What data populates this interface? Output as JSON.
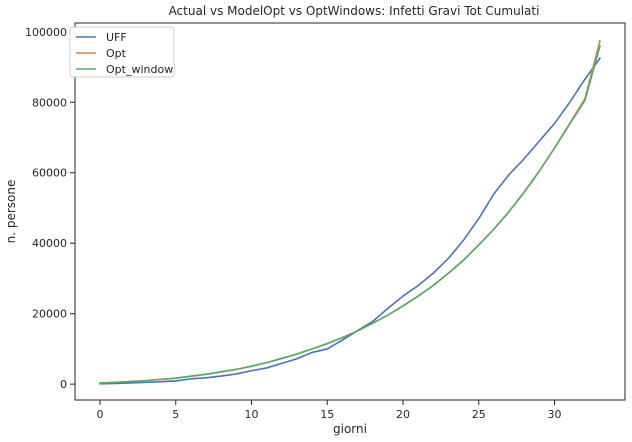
{
  "chart_data": {
    "type": "line",
    "title": "Actual vs ModelOpt vs OptWindows: Infetti Gravi Tot Cumulati",
    "xlabel": "giorni",
    "ylabel": "n. persone",
    "xlim": [
      -1.65,
      34.65
    ],
    "ylim": [
      -4500,
      102500
    ],
    "xticks": [
      0,
      5,
      10,
      15,
      20,
      25,
      30
    ],
    "xtick_labels": [
      "0",
      "5",
      "10",
      "15",
      "20",
      "25",
      "30"
    ],
    "yticks": [
      0,
      20000,
      40000,
      60000,
      80000,
      100000
    ],
    "ytick_labels": [
      "0",
      "20000",
      "40000",
      "60000",
      "80000",
      "100000"
    ],
    "grid": false,
    "legend_position": "top-left",
    "x": [
      0,
      1,
      2,
      3,
      4,
      5,
      6,
      7,
      8,
      9,
      10,
      11,
      12,
      13,
      14,
      15,
      16,
      17,
      18,
      19,
      20,
      21,
      22,
      23,
      24,
      25,
      26,
      27,
      28,
      29,
      30,
      31,
      32,
      33
    ],
    "series": [
      {
        "name": "UFF",
        "color": "#4c72b0",
        "values": [
          100,
          200,
          350,
          500,
          700,
          900,
          1500,
          1800,
          2300,
          2900,
          3800,
          4600,
          5900,
          7200,
          9000,
          10000,
          12500,
          15200,
          17800,
          21500,
          25000,
          28000,
          31500,
          35700,
          40900,
          47000,
          54000,
          59500,
          64000,
          69000,
          74000,
          80000,
          86500,
          92500
        ]
      },
      {
        "name": "Opt",
        "color": "#dd8452",
        "values": [
          300,
          500,
          750,
          1000,
          1350,
          1700,
          2250,
          2800,
          3500,
          4200,
          5100,
          6100,
          7300,
          8550,
          10000,
          11500,
          13200,
          15100,
          17300,
          19600,
          22200,
          25000,
          28000,
          31500,
          35200,
          39500,
          44000,
          49000,
          54500,
          60500,
          67000,
          74000,
          81000,
          97500
        ]
      },
      {
        "name": "Opt_window",
        "color": "#55a868",
        "values": [
          300,
          500,
          750,
          1000,
          1350,
          1700,
          2250,
          2800,
          3500,
          4200,
          5100,
          6100,
          7300,
          8550,
          10000,
          11500,
          13200,
          15100,
          17300,
          19600,
          22200,
          25000,
          28000,
          31500,
          35200,
          39500,
          44000,
          49000,
          54500,
          60500,
          67000,
          73800,
          80500,
          96000
        ]
      }
    ]
  }
}
